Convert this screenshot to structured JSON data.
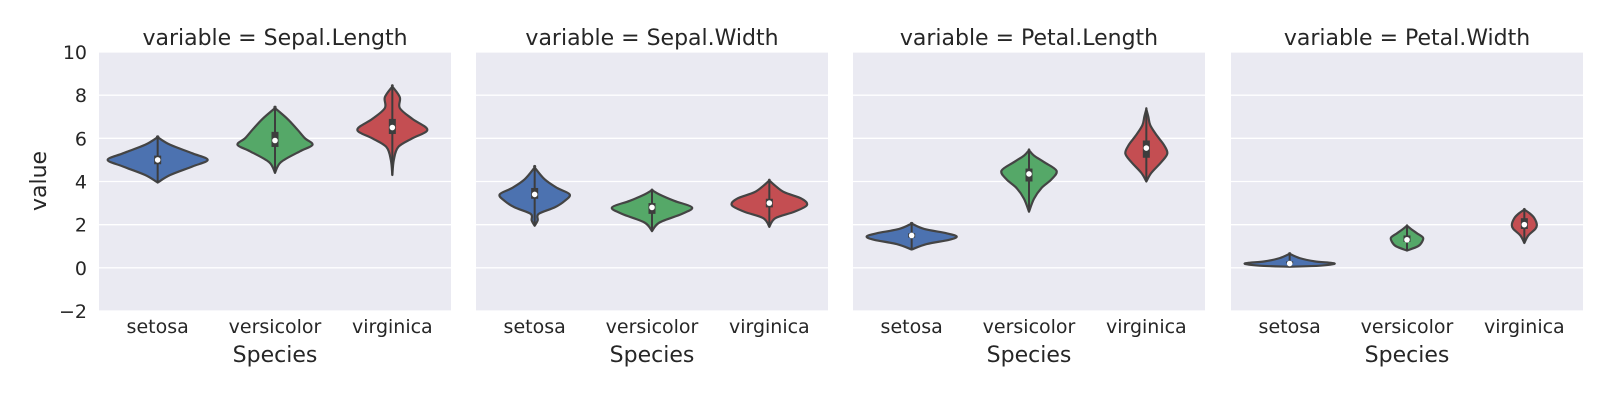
{
  "chart_data": {
    "type": "violin",
    "ylabel": "value",
    "xlabel": "Species",
    "ylim": [
      -2,
      10
    ],
    "yticks": [
      -2,
      0,
      2,
      4,
      6,
      8,
      10
    ],
    "ytick_labels": [
      "−2",
      "0",
      "2",
      "4",
      "6",
      "8",
      "10"
    ],
    "categories": [
      "setosa",
      "versicolor",
      "virginica"
    ],
    "colors": {
      "setosa": "#4c72b0",
      "versicolor": "#55a868",
      "virginica": "#c44e52"
    },
    "background": "#eaeaf2",
    "grid": true,
    "panels": [
      {
        "title": "variable = Sepal.Length",
        "violins": [
          {
            "category": "setosa",
            "min": 3.95,
            "max": 6.05,
            "q1": 4.8,
            "median": 5.0,
            "q3": 5.2,
            "density": [
              [
                3.95,
                0.0
              ],
              [
                4.3,
                0.25
              ],
              [
                4.7,
                0.7
              ],
              [
                5.0,
                1.0
              ],
              [
                5.3,
                0.7
              ],
              [
                5.7,
                0.25
              ],
              [
                6.05,
                0.0
              ]
            ]
          },
          {
            "category": "versicolor",
            "min": 4.4,
            "max": 7.4,
            "q1": 5.6,
            "median": 5.9,
            "q3": 6.3,
            "density": [
              [
                4.4,
                0.0
              ],
              [
                4.9,
                0.12
              ],
              [
                5.4,
                0.5
              ],
              [
                5.7,
                0.75
              ],
              [
                6.0,
                0.6
              ],
              [
                6.4,
                0.45
              ],
              [
                6.9,
                0.25
              ],
              [
                7.4,
                0.0
              ]
            ]
          },
          {
            "category": "virginica",
            "min": 4.3,
            "max": 8.4,
            "q1": 6.2,
            "median": 6.5,
            "q3": 6.9,
            "density": [
              [
                4.3,
                0.0
              ],
              [
                5.0,
                0.03
              ],
              [
                5.6,
                0.12
              ],
              [
                6.0,
                0.4
              ],
              [
                6.4,
                0.7
              ],
              [
                6.9,
                0.4
              ],
              [
                7.4,
                0.15
              ],
              [
                7.9,
                0.15
              ],
              [
                8.4,
                0.0
              ]
            ]
          }
        ]
      },
      {
        "title": "variable = Sepal.Width",
        "violins": [
          {
            "category": "setosa",
            "min": 1.95,
            "max": 4.65,
            "q1": 3.2,
            "median": 3.4,
            "q3": 3.7,
            "density": [
              [
                1.95,
                0.0
              ],
              [
                2.2,
                0.06
              ],
              [
                2.5,
                0.08
              ],
              [
                2.8,
                0.4
              ],
              [
                3.1,
                0.6
              ],
              [
                3.4,
                0.7
              ],
              [
                3.7,
                0.45
              ],
              [
                4.1,
                0.2
              ],
              [
                4.65,
                0.0
              ]
            ]
          },
          {
            "category": "versicolor",
            "min": 1.7,
            "max": 3.6,
            "q1": 2.5,
            "median": 2.8,
            "q3": 3.0,
            "density": [
              [
                1.7,
                0.0
              ],
              [
                2.1,
                0.15
              ],
              [
                2.5,
                0.6
              ],
              [
                2.8,
                0.8
              ],
              [
                3.1,
                0.45
              ],
              [
                3.4,
                0.15
              ],
              [
                3.6,
                0.0
              ]
            ]
          },
          {
            "category": "virginica",
            "min": 1.9,
            "max": 4.05,
            "q1": 2.8,
            "median": 3.0,
            "q3": 3.2,
            "density": [
              [
                1.9,
                0.0
              ],
              [
                2.3,
                0.12
              ],
              [
                2.6,
                0.5
              ],
              [
                2.9,
                0.75
              ],
              [
                3.2,
                0.65
              ],
              [
                3.5,
                0.3
              ],
              [
                3.8,
                0.12
              ],
              [
                4.05,
                0.0
              ]
            ]
          }
        ]
      },
      {
        "title": "variable = Petal.Length",
        "violins": [
          {
            "category": "setosa",
            "min": 0.85,
            "max": 2.05,
            "q1": 1.4,
            "median": 1.5,
            "q3": 1.6,
            "density": [
              [
                0.85,
                0.0
              ],
              [
                1.1,
                0.3
              ],
              [
                1.3,
                0.75
              ],
              [
                1.45,
                0.9
              ],
              [
                1.6,
                0.7
              ],
              [
                1.8,
                0.25
              ],
              [
                2.05,
                0.0
              ]
            ]
          },
          {
            "category": "versicolor",
            "min": 2.6,
            "max": 5.45,
            "q1": 4.0,
            "median": 4.35,
            "q3": 4.6,
            "density": [
              [
                2.6,
                0.0
              ],
              [
                3.2,
                0.1
              ],
              [
                3.7,
                0.25
              ],
              [
                4.1,
                0.45
              ],
              [
                4.5,
                0.55
              ],
              [
                4.9,
                0.3
              ],
              [
                5.2,
                0.1
              ],
              [
                5.45,
                0.0
              ]
            ]
          },
          {
            "category": "virginica",
            "min": 4.0,
            "max": 7.35,
            "q1": 5.1,
            "median": 5.55,
            "q3": 5.9,
            "density": [
              [
                4.0,
                0.0
              ],
              [
                4.4,
                0.1
              ],
              [
                4.9,
                0.3
              ],
              [
                5.3,
                0.42
              ],
              [
                5.7,
                0.35
              ],
              [
                6.1,
                0.22
              ],
              [
                6.6,
                0.08
              ],
              [
                7.0,
                0.04
              ],
              [
                7.35,
                0.0
              ]
            ]
          }
        ]
      },
      {
        "title": "variable = Petal.Width",
        "violins": [
          {
            "category": "setosa",
            "min": 0.05,
            "max": 0.65,
            "q1": 0.2,
            "median": 0.2,
            "q3": 0.3,
            "density": [
              [
                0.05,
                0.0
              ],
              [
                0.1,
                0.6
              ],
              [
                0.2,
                0.9
              ],
              [
                0.3,
                0.5
              ],
              [
                0.45,
                0.2
              ],
              [
                0.65,
                0.0
              ]
            ]
          },
          {
            "category": "versicolor",
            "min": 0.8,
            "max": 1.95,
            "q1": 1.2,
            "median": 1.3,
            "q3": 1.5,
            "density": [
              [
                0.8,
                0.0
              ],
              [
                1.0,
                0.22
              ],
              [
                1.2,
                0.3
              ],
              [
                1.4,
                0.32
              ],
              [
                1.6,
                0.2
              ],
              [
                1.8,
                0.08
              ],
              [
                1.95,
                0.0
              ]
            ]
          },
          {
            "category": "virginica",
            "min": 1.15,
            "max": 2.7,
            "q1": 1.8,
            "median": 2.0,
            "q3": 2.3,
            "density": [
              [
                1.15,
                0.0
              ],
              [
                1.5,
                0.08
              ],
              [
                1.8,
                0.22
              ],
              [
                2.0,
                0.25
              ],
              [
                2.3,
                0.2
              ],
              [
                2.5,
                0.12
              ],
              [
                2.7,
                0.0
              ]
            ]
          }
        ]
      }
    ]
  }
}
